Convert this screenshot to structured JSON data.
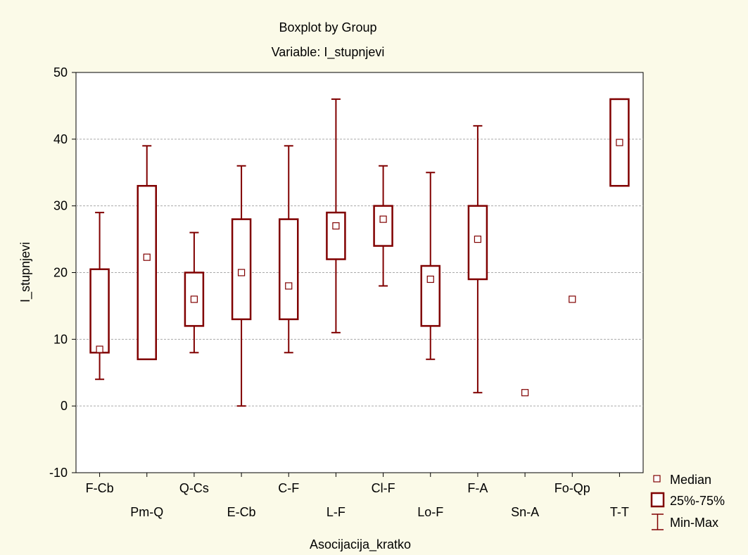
{
  "chart_data": {
    "type": "boxplot",
    "title": "Boxplot by Group",
    "subtitle": "Variable: I_stupnjevi",
    "xlabel": "Asocijacija_kratko",
    "ylabel": "I_stupnjevi",
    "ylim": [
      -10,
      50
    ],
    "yticks": [
      "-10",
      "0",
      "10",
      "20",
      "30",
      "40",
      "50"
    ],
    "grid": "horizontal dashed",
    "legend_position": "bottom-right",
    "colors": {
      "box": "#800000",
      "median": "#800000",
      "background": "#FBFAE8",
      "plot_bg": "#FFFFFF"
    },
    "categories": [
      "F-Cb",
      "Pm-Q",
      "Q-Cs",
      "E-Cb",
      "C-F",
      "L-F",
      "Cl-F",
      "Lo-F",
      "F-A",
      "Sn-A",
      "Fo-Qp",
      "T-T"
    ],
    "boxes": [
      {
        "group": "F-Cb",
        "min": 4,
        "q1": 8,
        "median": 8.5,
        "q3": 20.5,
        "max": 29
      },
      {
        "group": "Pm-Q",
        "min": 7,
        "q1": 7,
        "median": 22.3,
        "q3": 33,
        "max": 39
      },
      {
        "group": "Q-Cs",
        "min": 8,
        "q1": 12,
        "median": 16,
        "q3": 20,
        "max": 26
      },
      {
        "group": "E-Cb",
        "min": 0,
        "q1": 13,
        "median": 20,
        "q3": 28,
        "max": 36
      },
      {
        "group": "C-F",
        "min": 8,
        "q1": 13,
        "median": 18,
        "q3": 28,
        "max": 39
      },
      {
        "group": "L-F",
        "min": 11,
        "q1": 22,
        "median": 27,
        "q3": 29,
        "max": 46
      },
      {
        "group": "Cl-F",
        "min": 18,
        "q1": 24,
        "median": 28,
        "q3": 30,
        "max": 36
      },
      {
        "group": "Lo-F",
        "min": 7,
        "q1": 12,
        "median": 19,
        "q3": 21,
        "max": 35
      },
      {
        "group": "F-A",
        "min": 2,
        "q1": 19,
        "median": 25,
        "q3": 30,
        "max": 42
      },
      {
        "group": "Sn-A",
        "min": 2,
        "q1": 2,
        "median": 2,
        "q3": 2,
        "max": 2
      },
      {
        "group": "Fo-Qp",
        "min": 16,
        "q1": 16,
        "median": 16,
        "q3": 16,
        "max": 16
      },
      {
        "group": "T-T",
        "min": 33,
        "q1": 33,
        "median": 39.5,
        "q3": 46,
        "max": 46
      }
    ],
    "legend": [
      "Median",
      "25%-75%",
      "Min-Max"
    ]
  }
}
